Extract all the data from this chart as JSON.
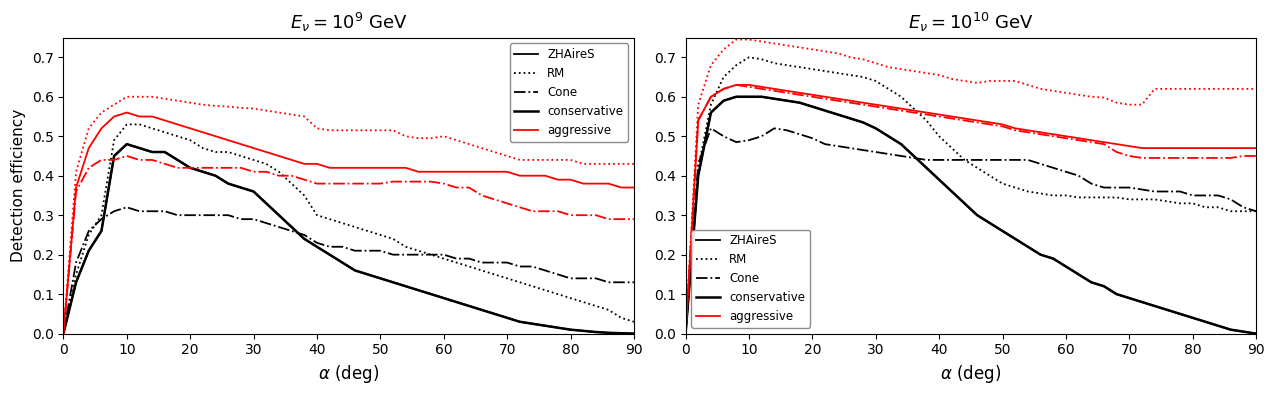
{
  "left_title": "$E_\\nu = 10^9$ GeV",
  "right_title": "$E_\\nu = 10^{10}$ GeV",
  "xlabel": "$\\alpha$ (deg)",
  "ylabel": "Detection efficiency",
  "xlim": [
    0,
    90
  ],
  "ylim": [
    0.0,
    0.75
  ],
  "yticks": [
    0.0,
    0.1,
    0.2,
    0.3,
    0.4,
    0.5,
    0.6,
    0.7
  ],
  "alpha": [
    0,
    2,
    4,
    6,
    8,
    10,
    12,
    14,
    16,
    18,
    20,
    22,
    24,
    26,
    28,
    30,
    32,
    34,
    36,
    38,
    40,
    42,
    44,
    46,
    48,
    50,
    52,
    54,
    56,
    58,
    60,
    62,
    64,
    66,
    68,
    70,
    72,
    74,
    76,
    78,
    80,
    82,
    84,
    86,
    88,
    90
  ],
  "left_ZHAireS": [
    0.0,
    0.13,
    0.21,
    0.26,
    0.45,
    0.48,
    0.47,
    0.46,
    0.46,
    0.44,
    0.42,
    0.41,
    0.4,
    0.38,
    0.37,
    0.36,
    0.33,
    0.3,
    0.27,
    0.24,
    0.22,
    0.2,
    0.18,
    0.16,
    0.15,
    0.14,
    0.13,
    0.12,
    0.11,
    0.1,
    0.09,
    0.08,
    0.07,
    0.06,
    0.05,
    0.04,
    0.03,
    0.025,
    0.02,
    0.015,
    0.01,
    0.007,
    0.004,
    0.002,
    0.001,
    0.0
  ],
  "left_RM": [
    0.0,
    0.15,
    0.25,
    0.3,
    0.49,
    0.53,
    0.53,
    0.52,
    0.51,
    0.5,
    0.49,
    0.47,
    0.46,
    0.46,
    0.45,
    0.44,
    0.43,
    0.41,
    0.38,
    0.35,
    0.3,
    0.29,
    0.28,
    0.27,
    0.26,
    0.25,
    0.24,
    0.22,
    0.21,
    0.2,
    0.19,
    0.18,
    0.17,
    0.16,
    0.15,
    0.14,
    0.13,
    0.12,
    0.11,
    0.1,
    0.09,
    0.08,
    0.07,
    0.06,
    0.04,
    0.03
  ],
  "left_Cone": [
    0.0,
    0.18,
    0.26,
    0.29,
    0.31,
    0.32,
    0.31,
    0.31,
    0.31,
    0.3,
    0.3,
    0.3,
    0.3,
    0.3,
    0.29,
    0.29,
    0.28,
    0.27,
    0.26,
    0.25,
    0.23,
    0.22,
    0.22,
    0.21,
    0.21,
    0.21,
    0.2,
    0.2,
    0.2,
    0.2,
    0.2,
    0.19,
    0.19,
    0.18,
    0.18,
    0.18,
    0.17,
    0.17,
    0.16,
    0.15,
    0.14,
    0.14,
    0.14,
    0.13,
    0.13,
    0.13
  ],
  "left_cons": [
    0.0,
    0.13,
    0.21,
    0.26,
    0.45,
    0.48,
    0.47,
    0.46,
    0.46,
    0.44,
    0.42,
    0.41,
    0.4,
    0.38,
    0.37,
    0.36,
    0.33,
    0.3,
    0.27,
    0.24,
    0.22,
    0.2,
    0.18,
    0.16,
    0.15,
    0.14,
    0.13,
    0.12,
    0.11,
    0.1,
    0.09,
    0.08,
    0.07,
    0.06,
    0.05,
    0.04,
    0.03,
    0.025,
    0.02,
    0.015,
    0.01,
    0.007,
    0.004,
    0.002,
    0.001,
    0.0
  ],
  "left_agg_ZHAireS": [
    0.0,
    0.37,
    0.47,
    0.52,
    0.55,
    0.56,
    0.55,
    0.55,
    0.54,
    0.53,
    0.52,
    0.51,
    0.5,
    0.49,
    0.48,
    0.47,
    0.46,
    0.45,
    0.44,
    0.43,
    0.43,
    0.42,
    0.42,
    0.42,
    0.42,
    0.42,
    0.42,
    0.42,
    0.41,
    0.41,
    0.41,
    0.41,
    0.41,
    0.41,
    0.41,
    0.41,
    0.4,
    0.4,
    0.4,
    0.39,
    0.39,
    0.38,
    0.38,
    0.38,
    0.37,
    0.37
  ],
  "left_agg_RM": [
    0.0,
    0.41,
    0.52,
    0.56,
    0.58,
    0.6,
    0.6,
    0.6,
    0.595,
    0.59,
    0.585,
    0.58,
    0.577,
    0.575,
    0.572,
    0.57,
    0.565,
    0.56,
    0.555,
    0.55,
    0.52,
    0.515,
    0.515,
    0.515,
    0.515,
    0.515,
    0.515,
    0.5,
    0.495,
    0.495,
    0.5,
    0.49,
    0.48,
    0.47,
    0.46,
    0.45,
    0.44,
    0.44,
    0.44,
    0.44,
    0.44,
    0.43,
    0.43,
    0.43,
    0.43,
    0.43
  ],
  "left_agg_Cone": [
    0.0,
    0.36,
    0.42,
    0.44,
    0.44,
    0.45,
    0.44,
    0.44,
    0.43,
    0.42,
    0.42,
    0.42,
    0.42,
    0.42,
    0.42,
    0.41,
    0.41,
    0.4,
    0.4,
    0.39,
    0.38,
    0.38,
    0.38,
    0.38,
    0.38,
    0.38,
    0.385,
    0.385,
    0.385,
    0.385,
    0.38,
    0.37,
    0.37,
    0.35,
    0.34,
    0.33,
    0.32,
    0.31,
    0.31,
    0.31,
    0.3,
    0.3,
    0.3,
    0.29,
    0.29,
    0.29
  ],
  "right_ZHAireS": [
    0.0,
    0.4,
    0.56,
    0.59,
    0.6,
    0.6,
    0.6,
    0.595,
    0.59,
    0.585,
    0.575,
    0.565,
    0.555,
    0.545,
    0.535,
    0.52,
    0.5,
    0.48,
    0.45,
    0.42,
    0.39,
    0.36,
    0.33,
    0.3,
    0.28,
    0.26,
    0.24,
    0.22,
    0.2,
    0.19,
    0.17,
    0.15,
    0.13,
    0.12,
    0.1,
    0.09,
    0.08,
    0.07,
    0.06,
    0.05,
    0.04,
    0.03,
    0.02,
    0.01,
    0.005,
    0.0
  ],
  "right_RM": [
    0.0,
    0.42,
    0.58,
    0.65,
    0.68,
    0.7,
    0.695,
    0.685,
    0.68,
    0.675,
    0.67,
    0.665,
    0.66,
    0.655,
    0.65,
    0.64,
    0.62,
    0.6,
    0.57,
    0.54,
    0.5,
    0.47,
    0.44,
    0.42,
    0.4,
    0.38,
    0.37,
    0.36,
    0.355,
    0.35,
    0.35,
    0.345,
    0.345,
    0.345,
    0.345,
    0.34,
    0.34,
    0.34,
    0.335,
    0.33,
    0.33,
    0.32,
    0.32,
    0.31,
    0.31,
    0.31
  ],
  "right_Cone": [
    0.0,
    0.43,
    0.52,
    0.5,
    0.485,
    0.49,
    0.5,
    0.52,
    0.515,
    0.505,
    0.495,
    0.48,
    0.475,
    0.47,
    0.465,
    0.46,
    0.455,
    0.45,
    0.445,
    0.44,
    0.44,
    0.44,
    0.44,
    0.44,
    0.44,
    0.44,
    0.44,
    0.44,
    0.43,
    0.42,
    0.41,
    0.4,
    0.38,
    0.37,
    0.37,
    0.37,
    0.365,
    0.36,
    0.36,
    0.36,
    0.35,
    0.35,
    0.35,
    0.34,
    0.32,
    0.31
  ],
  "right_cons": [
    0.0,
    0.4,
    0.56,
    0.59,
    0.6,
    0.6,
    0.6,
    0.595,
    0.59,
    0.585,
    0.575,
    0.565,
    0.555,
    0.545,
    0.535,
    0.52,
    0.5,
    0.48,
    0.45,
    0.42,
    0.39,
    0.36,
    0.33,
    0.3,
    0.28,
    0.26,
    0.24,
    0.22,
    0.2,
    0.19,
    0.17,
    0.15,
    0.13,
    0.12,
    0.1,
    0.09,
    0.08,
    0.07,
    0.06,
    0.05,
    0.04,
    0.03,
    0.02,
    0.01,
    0.005,
    0.0
  ],
  "right_agg_ZHAireS": [
    0.0,
    0.54,
    0.6,
    0.62,
    0.63,
    0.63,
    0.625,
    0.62,
    0.615,
    0.61,
    0.605,
    0.6,
    0.595,
    0.59,
    0.585,
    0.58,
    0.575,
    0.57,
    0.565,
    0.56,
    0.555,
    0.55,
    0.545,
    0.54,
    0.535,
    0.53,
    0.52,
    0.515,
    0.51,
    0.505,
    0.5,
    0.495,
    0.49,
    0.485,
    0.48,
    0.475,
    0.47,
    0.47,
    0.47,
    0.47,
    0.47,
    0.47,
    0.47,
    0.47,
    0.47,
    0.47
  ],
  "right_agg_RM": [
    0.0,
    0.58,
    0.68,
    0.72,
    0.745,
    0.745,
    0.74,
    0.735,
    0.73,
    0.725,
    0.72,
    0.715,
    0.71,
    0.7,
    0.695,
    0.685,
    0.675,
    0.67,
    0.665,
    0.66,
    0.655,
    0.645,
    0.64,
    0.635,
    0.64,
    0.64,
    0.64,
    0.63,
    0.62,
    0.615,
    0.61,
    0.605,
    0.6,
    0.598,
    0.585,
    0.58,
    0.58,
    0.62,
    0.62,
    0.62,
    0.62,
    0.62,
    0.62,
    0.62,
    0.62,
    0.62
  ],
  "right_agg_Cone": [
    0.0,
    0.54,
    0.6,
    0.62,
    0.63,
    0.625,
    0.62,
    0.615,
    0.61,
    0.605,
    0.6,
    0.595,
    0.59,
    0.585,
    0.58,
    0.575,
    0.57,
    0.565,
    0.56,
    0.555,
    0.55,
    0.545,
    0.54,
    0.535,
    0.53,
    0.525,
    0.515,
    0.51,
    0.505,
    0.5,
    0.495,
    0.49,
    0.485,
    0.48,
    0.46,
    0.45,
    0.445,
    0.445,
    0.445,
    0.445,
    0.445,
    0.445,
    0.445,
    0.445,
    0.45,
    0.45
  ],
  "legend_labels": [
    "ZHAireS",
    "RM",
    "Cone",
    "conservative",
    "aggressive"
  ],
  "lw": 1.3
}
